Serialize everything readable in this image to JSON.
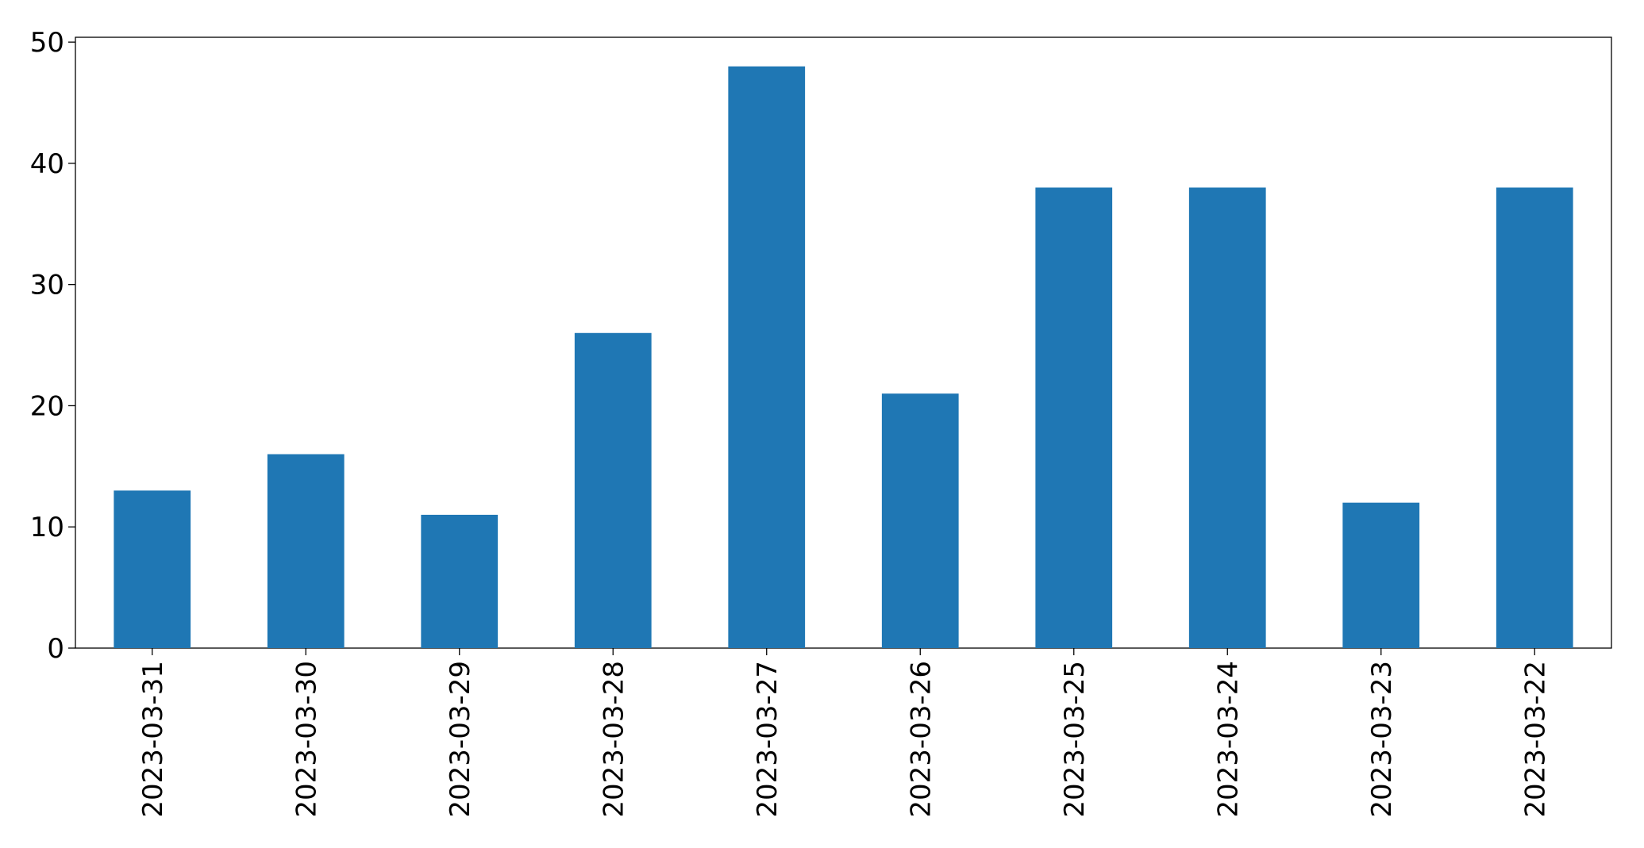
{
  "chart_data": {
    "type": "bar",
    "categories": [
      "2023-03-31",
      "2023-03-30",
      "2023-03-29",
      "2023-03-28",
      "2023-03-27",
      "2023-03-26",
      "2023-03-25",
      "2023-03-24",
      "2023-03-23",
      "2023-03-22"
    ],
    "values": [
      13,
      16,
      11,
      26,
      48,
      21,
      38,
      38,
      12,
      38
    ],
    "color": "#1f77b4",
    "ylim": [
      0,
      50.4
    ],
    "yticks": [
      0,
      10,
      20,
      30,
      40,
      50
    ],
    "grid": false
  }
}
